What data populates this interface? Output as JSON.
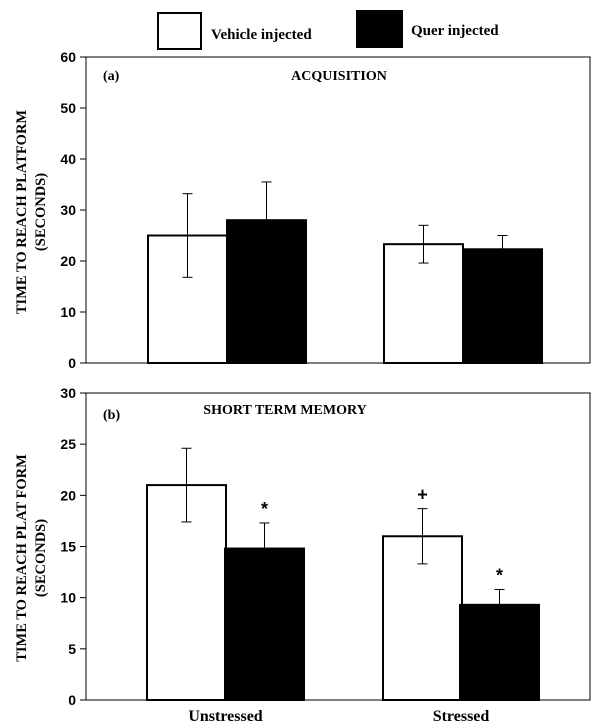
{
  "legend": {
    "items": [
      {
        "label": "Vehicle injected",
        "color": "#ffffff"
      },
      {
        "label": "Quer injected",
        "color": "#000000"
      }
    ]
  },
  "chart_data": [
    {
      "type": "bar",
      "panel": "(a)",
      "title": "ACQUISITION",
      "ylabel_line1": "TIME TO REACH PLATFORM",
      "ylabel_line2": "(SECONDS)",
      "ylim": [
        0,
        60
      ],
      "yticks": [
        0,
        10,
        20,
        30,
        40,
        50,
        60
      ],
      "categories": [
        "Unstressed",
        "Stressed"
      ],
      "show_category_labels": false,
      "series": [
        {
          "name": "Vehicle injected",
          "color": "#ffffff",
          "values": [
            25,
            23.3
          ],
          "errors": [
            8.2,
            3.7
          ]
        },
        {
          "name": "Quer injected",
          "color": "#000000",
          "values": [
            28,
            22.3
          ],
          "errors": [
            7.5,
            2.7
          ]
        }
      ],
      "annotations": []
    },
    {
      "type": "bar",
      "panel": "(b)",
      "title": "SHORT TERM MEMORY",
      "ylabel_line1": "TIME TO REACH PLAT FORM",
      "ylabel_line2": "(SECONDS)",
      "ylim": [
        0,
        30
      ],
      "yticks": [
        0,
        5,
        10,
        15,
        20,
        25,
        30
      ],
      "categories": [
        "Unstressed",
        "Stressed"
      ],
      "show_category_labels": true,
      "series": [
        {
          "name": "Vehicle injected",
          "color": "#ffffff",
          "values": [
            21,
            16
          ],
          "errors": [
            3.6,
            2.7
          ]
        },
        {
          "name": "Quer injected",
          "color": "#000000",
          "values": [
            14.8,
            9.3
          ],
          "errors": [
            2.5,
            1.5
          ]
        }
      ],
      "annotations": [
        {
          "category": 0,
          "series": 1,
          "symbol": "*"
        },
        {
          "category": 1,
          "series": 0,
          "symbol": "+"
        },
        {
          "category": 1,
          "series": 1,
          "symbol": "*"
        }
      ]
    }
  ]
}
